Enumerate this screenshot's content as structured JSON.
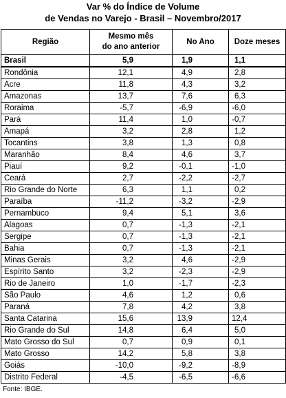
{
  "title": {
    "line1": "Var % do Índice de Volume",
    "line2": "de Vendas no Varejo - Brasil – Novembro/2017"
  },
  "columns": [
    "Região",
    "Mesmo mês do ano anterior",
    "No Ano",
    "Doze meses"
  ],
  "columns_display": {
    "region": "Região",
    "same_month_l1": "Mesmo mês",
    "same_month_l2": "do ano anterior",
    "year": "No Ano",
    "twelve": "Doze meses"
  },
  "rows": [
    [
      "Brasil",
      "5,9",
      "1,9",
      "1,1"
    ],
    [
      "Rondônia",
      "12,1",
      "4,9",
      "2,8"
    ],
    [
      "Acre",
      "11,8",
      "4,3",
      "3,2"
    ],
    [
      "Amazonas",
      "13,7",
      "7,6",
      "6,3"
    ],
    [
      "Roraima",
      "-5,7",
      "-6,9",
      "-6,0"
    ],
    [
      "Pará",
      "11,4",
      "1,0",
      "-0,7"
    ],
    [
      "Amapá",
      "3,2",
      "2,8",
      "1,2"
    ],
    [
      "Tocantins",
      "3,8",
      "1,3",
      "0,8"
    ],
    [
      "Maranhão",
      "8,4",
      "4,6",
      "3,7"
    ],
    [
      "Piauí",
      "9,2",
      "-0,1",
      "-1,0"
    ],
    [
      "Ceará",
      "2,7",
      "-2,2",
      "-2,7"
    ],
    [
      "Rio Grande do Norte",
      "6,3",
      "1,1",
      "0,2"
    ],
    [
      "Paraíba",
      "-11,2",
      "-3,2",
      "-2,9"
    ],
    [
      "Pernambuco",
      "9,4",
      "5,1",
      "3,6"
    ],
    [
      "Alagoas",
      "0,7",
      "-1,3",
      "-2,1"
    ],
    [
      "Sergipe",
      "0,7",
      "-1,3",
      "-2,1"
    ],
    [
      "Bahia",
      "0,7",
      "-1,3",
      "-2,1"
    ],
    [
      "Minas Gerais",
      "3,2",
      "4,6",
      "-2,9"
    ],
    [
      "Espírito Santo",
      "3,2",
      "-2,3",
      "-2,9"
    ],
    [
      "Rio de Janeiro",
      "1,0",
      "-1,7",
      "-2,3"
    ],
    [
      "São Paulo",
      "4,6",
      "1,2",
      "0,6"
    ],
    [
      "Paraná",
      "7,8",
      "4,2",
      "3,8"
    ],
    [
      "Santa Catarina",
      "15,6",
      "13,9",
      "12,4"
    ],
    [
      "Rio Grande do Sul",
      "14,8",
      "6,4",
      "5,0"
    ],
    [
      "Mato Grosso do Sul",
      "0,7",
      "0,9",
      "0,1"
    ],
    [
      "Mato Grosso",
      "14,2",
      "5,8",
      "3,8"
    ],
    [
      "Goiás",
      "-10,0",
      "-9,2",
      "-8,9"
    ],
    [
      "Distrito Federal",
      "-4,5",
      "-6,5",
      "-6,6"
    ]
  ],
  "source": "Fonte: IBGE."
}
